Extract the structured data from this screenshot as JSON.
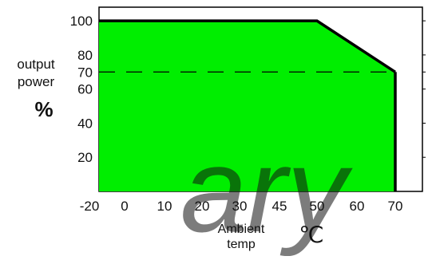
{
  "colors": {
    "fill": "#00ee00",
    "outline": "#000000",
    "dash": "#000000",
    "frame": "#000000",
    "watermark": "#e6e6e6",
    "background": "#ffffff"
  },
  "chart_data": {
    "type": "area",
    "title": "",
    "ylabel": [
      "output",
      "power"
    ],
    "yunit": "%",
    "xlabel": [
      "Ambient",
      "temp"
    ],
    "xunit": "℃",
    "x_tick_labels": [
      "-20",
      "0",
      "10",
      "20",
      "30",
      "45",
      "50",
      "60",
      "70"
    ],
    "y_tick_labels": [
      "100",
      "80",
      "70",
      "60",
      "40",
      "20"
    ],
    "y_tick_values": [
      100,
      80,
      70,
      60,
      40,
      20
    ],
    "ylim": [
      0,
      108
    ],
    "grid": false,
    "series": [
      {
        "x_at_tick": [
          0,
          6,
          8
        ],
        "x": [
          "-20",
          "50",
          "70"
        ],
        "y": [
          100,
          100,
          70
        ]
      }
    ],
    "reference_line": {
      "y": 70,
      "style": "dashed"
    },
    "watermark_text": "ary"
  }
}
